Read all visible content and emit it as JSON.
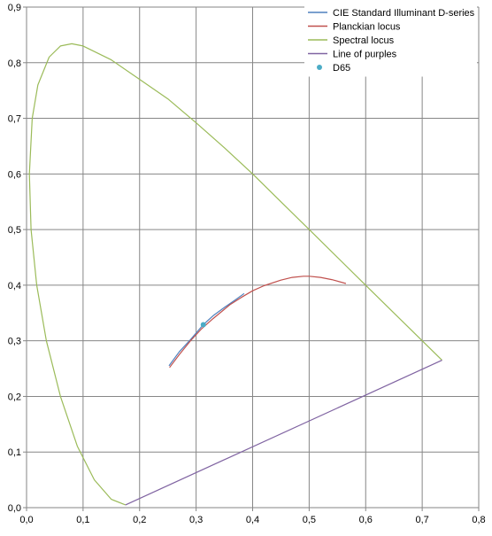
{
  "chart_data": {
    "type": "line",
    "x_ticks": [
      "0,0",
      "0,1",
      "0,2",
      "0,3",
      "0,4",
      "0,5",
      "0,6",
      "0,7",
      "0,8"
    ],
    "y_ticks": [
      "0,0",
      "0,1",
      "0,2",
      "0,3",
      "0,4",
      "0,5",
      "0,6",
      "0,7",
      "0,8",
      "0,9"
    ],
    "xlim": [
      0,
      0.8
    ],
    "ylim": [
      0,
      0.9
    ],
    "grid": true,
    "legend_position": "top-right",
    "series": [
      {
        "name": "CIE Standard Illuminant D-series",
        "kind": "line",
        "color": "#4f81bd",
        "points": [
          [
            0.252,
            0.255
          ],
          [
            0.27,
            0.28
          ],
          [
            0.29,
            0.302
          ],
          [
            0.3127,
            0.329
          ],
          [
            0.33,
            0.345
          ],
          [
            0.35,
            0.36
          ],
          [
            0.37,
            0.374
          ],
          [
            0.385,
            0.385
          ]
        ]
      },
      {
        "name": "Planckian locus",
        "kind": "line",
        "color": "#c0504d",
        "points": [
          [
            0.253,
            0.252
          ],
          [
            0.27,
            0.275
          ],
          [
            0.29,
            0.3
          ],
          [
            0.31,
            0.322
          ],
          [
            0.33,
            0.34
          ],
          [
            0.36,
            0.365
          ],
          [
            0.38,
            0.378
          ],
          [
            0.4,
            0.39
          ],
          [
            0.42,
            0.399
          ],
          [
            0.45,
            0.409
          ],
          [
            0.47,
            0.414
          ],
          [
            0.49,
            0.416
          ],
          [
            0.5,
            0.416
          ],
          [
            0.52,
            0.414
          ],
          [
            0.54,
            0.41
          ],
          [
            0.565,
            0.403
          ]
        ]
      },
      {
        "name": "Spectral locus",
        "kind": "line",
        "color": "#9bbb59",
        "points": [
          [
            0.735,
            0.265
          ],
          [
            0.6,
            0.4
          ],
          [
            0.5,
            0.5
          ],
          [
            0.45,
            0.55
          ],
          [
            0.4,
            0.6
          ],
          [
            0.35,
            0.647
          ],
          [
            0.3,
            0.692
          ],
          [
            0.25,
            0.735
          ],
          [
            0.2,
            0.77
          ],
          [
            0.15,
            0.805
          ],
          [
            0.1,
            0.83
          ],
          [
            0.08,
            0.834
          ],
          [
            0.06,
            0.83
          ],
          [
            0.04,
            0.81
          ],
          [
            0.02,
            0.76
          ],
          [
            0.01,
            0.7
          ],
          [
            0.005,
            0.6
          ],
          [
            0.008,
            0.5
          ],
          [
            0.018,
            0.4
          ],
          [
            0.035,
            0.3
          ],
          [
            0.06,
            0.2
          ],
          [
            0.09,
            0.11
          ],
          [
            0.12,
            0.05
          ],
          [
            0.15,
            0.015
          ],
          [
            0.175,
            0.005
          ]
        ]
      },
      {
        "name": "Line of purples",
        "kind": "line",
        "color": "#8064a2",
        "points": [
          [
            0.175,
            0.005
          ],
          [
            0.735,
            0.265
          ]
        ]
      },
      {
        "name": "D65",
        "kind": "point",
        "color": "#4bacc6",
        "points": [
          [
            0.3127,
            0.329
          ]
        ]
      }
    ]
  }
}
